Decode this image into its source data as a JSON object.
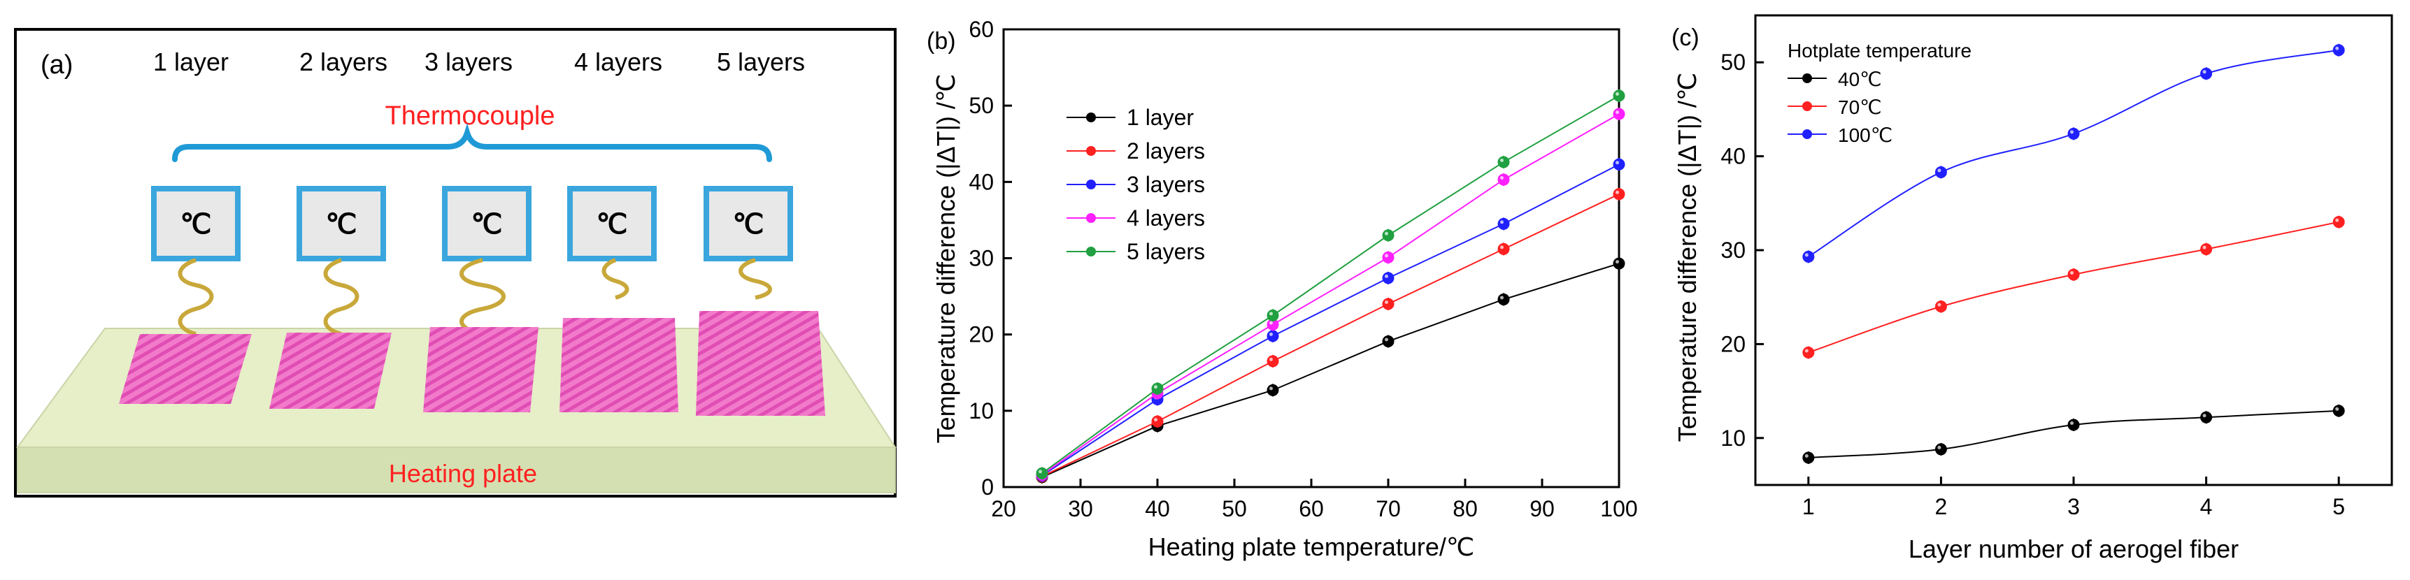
{
  "panel_a": {
    "label": "(a)",
    "layers": [
      "1 layer",
      "2 layers",
      "3 layers",
      "4 layers",
      "5 layers"
    ],
    "thermocouple_label": "Thermocouple",
    "meter_symbol": "℃",
    "plate_label": "Heating plate",
    "colors": {
      "accent_red": "#ff2020",
      "brace_blue": "#1f9ad6",
      "meter_border": "#3aa6dd",
      "fiber_pink": "#f070c8",
      "plate_green": "#e6efc8",
      "spring_gold": "#c8a83a"
    }
  },
  "chart_data": [
    {
      "panel": "(b)",
      "type": "line",
      "title": "",
      "xlabel": "Heating plate temperature/℃",
      "ylabel": "Temperature difference (|ΔT|) /℃",
      "xlim": [
        20,
        100
      ],
      "ylim": [
        0,
        60
      ],
      "xticks": [
        20,
        30,
        40,
        50,
        60,
        70,
        80,
        90,
        100
      ],
      "yticks": [
        0,
        10,
        20,
        30,
        40,
        50,
        60
      ],
      "x": [
        25,
        40,
        55,
        70,
        85,
        100
      ],
      "legend_position": "top-left",
      "series": [
        {
          "name": "1 layer",
          "color": "#000000",
          "values": [
            1.3,
            8.0,
            12.7,
            19.1,
            24.6,
            29.3
          ]
        },
        {
          "name": "2 layers",
          "color": "#ff2020",
          "values": [
            1.4,
            8.6,
            16.5,
            24.0,
            31.2,
            38.4
          ]
        },
        {
          "name": "3 layers",
          "color": "#2020ff",
          "values": [
            1.5,
            11.5,
            19.8,
            27.4,
            34.5,
            42.3
          ]
        },
        {
          "name": "4 layers",
          "color": "#ff20ff",
          "values": [
            1.6,
            12.3,
            21.3,
            30.1,
            40.3,
            48.9
          ]
        },
        {
          "name": "5 layers",
          "color": "#20a040",
          "values": [
            1.8,
            12.9,
            22.5,
            33.0,
            42.6,
            51.3
          ]
        }
      ]
    },
    {
      "panel": "(c)",
      "type": "line",
      "title": "",
      "xlabel": "Layer number of aerogel fiber",
      "ylabel": "Temperature difference (|ΔT|) /℃",
      "xlim": [
        0.6,
        5.4
      ],
      "ylim": [
        5,
        55
      ],
      "xticks": [
        1,
        2,
        3,
        4,
        5
      ],
      "yticks": [
        10,
        20,
        30,
        40,
        50
      ],
      "x": [
        1,
        2,
        3,
        4,
        5
      ],
      "legend_title": "Hotplate temperature",
      "legend_position": "top-left",
      "series": [
        {
          "name": "40℃",
          "color": "#000000",
          "values": [
            7.9,
            8.8,
            11.4,
            12.2,
            12.9
          ]
        },
        {
          "name": "70℃",
          "color": "#ff2020",
          "values": [
            19.1,
            24.0,
            27.4,
            30.1,
            33.0
          ]
        },
        {
          "name": "100℃",
          "color": "#2020ff",
          "values": [
            29.3,
            38.3,
            42.4,
            48.8,
            51.3
          ]
        }
      ]
    }
  ]
}
